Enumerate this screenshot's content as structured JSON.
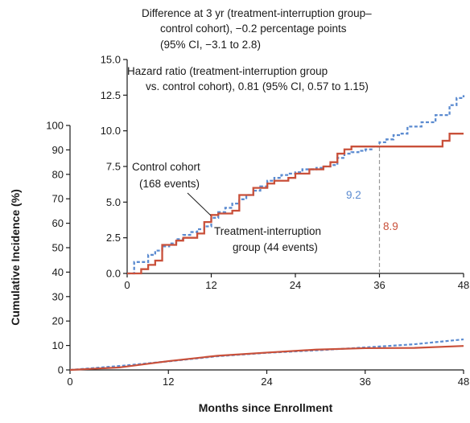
{
  "chart_data": [
    {
      "type": "line",
      "name": "main",
      "xlabel": "Months since Enrollment",
      "ylabel": "Cumulative Incidence (%)",
      "xlim": [
        0,
        48
      ],
      "ylim": [
        0,
        100
      ],
      "x_ticks": [
        "0",
        "12",
        "24",
        "36",
        "48"
      ],
      "y_ticks": [
        "0",
        "10",
        "20",
        "30",
        "40",
        "50",
        "60",
        "70",
        "80",
        "90",
        "100"
      ],
      "series": [
        {
          "color": "#5b8bd0",
          "style": "dotted",
          "x": [
            0,
            6,
            12,
            18,
            24,
            30,
            36,
            42,
            48
          ],
          "y": [
            0,
            1.6,
            3.5,
            5.6,
            7.0,
            8.0,
            9.2,
            10.5,
            12.5
          ]
        },
        {
          "color": "#c9503a",
          "style": "solid",
          "x": [
            0,
            6,
            12,
            18,
            24,
            30,
            36,
            42,
            48
          ],
          "y": [
            0,
            1.0,
            3.6,
            5.8,
            7.1,
            8.3,
            8.9,
            9.0,
            9.8
          ]
        }
      ]
    },
    {
      "type": "line",
      "name": "inset",
      "xlim": [
        0,
        48
      ],
      "ylim": [
        0,
        15
      ],
      "x_ticks": [
        "0",
        "12",
        "24",
        "36",
        "48"
      ],
      "y_ticks": [
        "0.0",
        "2.5",
        "5.0",
        "7.5",
        "10.0",
        "12.5",
        "15.0"
      ],
      "series": [
        {
          "name": "Control cohort (168 events)",
          "color": "#5b8bd0",
          "style": "dotted",
          "x": [
            0,
            1,
            3,
            4,
            5,
            6,
            7,
            8,
            9,
            10,
            11,
            12,
            13,
            14,
            15,
            16,
            17,
            18,
            19,
            20,
            21,
            22,
            23,
            24,
            25,
            27,
            28,
            29,
            30,
            31,
            32,
            33,
            34,
            35,
            36,
            37,
            38,
            39,
            40,
            42,
            44,
            46,
            47,
            48
          ],
          "y": [
            0,
            0.8,
            1.3,
            1.6,
            1.9,
            2.1,
            2.4,
            2.7,
            2.9,
            3.1,
            3.3,
            3.9,
            4.3,
            4.6,
            4.9,
            5.2,
            5.5,
            5.8,
            6.1,
            6.5,
            6.7,
            6.9,
            7.0,
            7.1,
            7.3,
            7.4,
            7.5,
            7.6,
            8.1,
            8.4,
            8.5,
            8.6,
            8.7,
            8.9,
            9.2,
            9.4,
            9.7,
            9.8,
            10.3,
            10.6,
            11.1,
            11.8,
            12.3,
            12.5
          ]
        },
        {
          "name": "Treatment-interruption group (44 events)",
          "color": "#c9503a",
          "style": "solid",
          "x": [
            0,
            2,
            3,
            4,
            5,
            7,
            8,
            10,
            11,
            12,
            13,
            15,
            16,
            18,
            20,
            21,
            23,
            24,
            26,
            28,
            29,
            30,
            31,
            32,
            38,
            45,
            46,
            48
          ],
          "y": [
            0,
            0.3,
            0.6,
            0.9,
            2.0,
            2.3,
            2.5,
            2.8,
            3.6,
            4.1,
            4.2,
            4.4,
            5.5,
            6.0,
            6.3,
            6.5,
            6.7,
            7.0,
            7.3,
            7.5,
            7.8,
            8.4,
            8.7,
            8.9,
            8.9,
            9.3,
            9.8,
            9.8
          ]
        }
      ],
      "marker_x": 36
    }
  ],
  "annotations": {
    "diff_line1": "Difference at 3 yr (treatment-interruption group–",
    "diff_line2": "control cohort), −0.2 percentage points",
    "diff_line3": "(95% CI, −3.1 to 2.8)",
    "hr_line1": "Hazard ratio (treatment-interruption group",
    "hr_line2": "vs. control cohort), 0.81 (95% CI, 0.57 to 1.15)",
    "control_line1": "Control cohort",
    "control_line2": "(168 events)",
    "treat_line1": "Treatment-interruption",
    "treat_line2": "group (44 events)",
    "val_control_36": "9.2",
    "val_treat_36": "8.9"
  }
}
